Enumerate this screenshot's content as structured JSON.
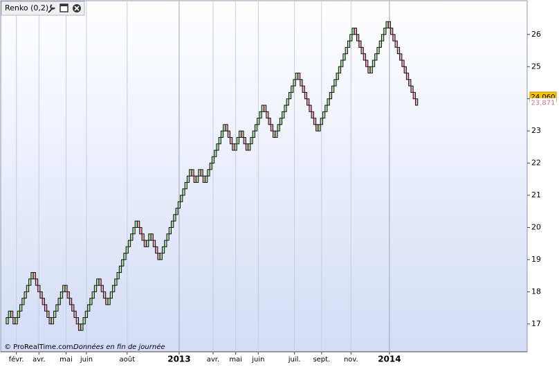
{
  "chart_data": {
    "type": "renko",
    "title": "Renko (0,2)",
    "footer": "© ProRealTime.com",
    "footer_note": "Données en fin de journée",
    "open": 17.0,
    "values": [
      17.2,
      17.4,
      17.2,
      17.0,
      17.2,
      17.4,
      17.6,
      17.8,
      18.0,
      18.2,
      18.4,
      18.6,
      18.4,
      18.2,
      18.0,
      17.8,
      17.6,
      17.4,
      17.2,
      17.0,
      17.2,
      17.4,
      17.6,
      17.8,
      18.0,
      18.2,
      18.0,
      17.8,
      17.6,
      17.4,
      17.2,
      17.0,
      16.8,
      17.0,
      17.2,
      17.4,
      17.6,
      17.8,
      18.0,
      18.2,
      18.4,
      18.2,
      18.0,
      17.8,
      17.6,
      17.8,
      18.0,
      18.2,
      18.4,
      18.6,
      18.8,
      19.0,
      19.2,
      19.4,
      19.6,
      19.8,
      20.0,
      20.2,
      20.0,
      19.8,
      19.6,
      19.4,
      19.6,
      19.8,
      19.6,
      19.4,
      19.2,
      19.0,
      19.2,
      19.4,
      19.6,
      19.8,
      20.0,
      20.2,
      20.4,
      20.6,
      20.8,
      21.0,
      21.2,
      21.4,
      21.6,
      21.8,
      21.6,
      21.4,
      21.6,
      21.8,
      21.6,
      21.4,
      21.6,
      21.8,
      22.0,
      22.2,
      22.4,
      22.6,
      22.8,
      23.0,
      23.2,
      23.0,
      22.8,
      22.6,
      22.4,
      22.6,
      22.8,
      23.0,
      22.8,
      22.6,
      22.4,
      22.6,
      22.8,
      23.0,
      23.2,
      23.4,
      23.6,
      23.8,
      23.6,
      23.4,
      23.2,
      23.0,
      22.8,
      23.0,
      23.2,
      23.4,
      23.6,
      23.8,
      24.0,
      24.2,
      24.4,
      24.6,
      24.8,
      24.6,
      24.4,
      24.2,
      24.0,
      23.8,
      23.6,
      23.4,
      23.2,
      23.0,
      23.2,
      23.4,
      23.6,
      23.8,
      24.0,
      24.2,
      24.4,
      24.6,
      24.8,
      25.0,
      25.2,
      25.4,
      25.6,
      25.8,
      26.0,
      26.2,
      26.0,
      25.8,
      25.6,
      25.4,
      25.2,
      25.0,
      24.8,
      25.0,
      25.2,
      25.4,
      25.6,
      25.8,
      26.0,
      26.2,
      26.4,
      26.2,
      26.0,
      25.8,
      25.6,
      25.4,
      25.2,
      25.0,
      24.8,
      24.6,
      24.4,
      24.2,
      24.0,
      23.8
    ],
    "up_color": "#a8e0a0",
    "down_color": "#e8a4b0",
    "xlim": [
      -2,
      229
    ],
    "xticks": [
      {
        "value": 4,
        "label": "févr."
      },
      {
        "value": 14,
        "label": "avr."
      },
      {
        "value": 26,
        "label": "mai"
      },
      {
        "value": 35,
        "label": "juin"
      },
      {
        "value": 53,
        "label": "août"
      },
      {
        "value": 76,
        "label": "2013"
      },
      {
        "value": 91,
        "label": "avr."
      },
      {
        "value": 101,
        "label": "mai"
      },
      {
        "value": 111,
        "label": "juin"
      },
      {
        "value": 127,
        "label": "juil."
      },
      {
        "value": 139,
        "label": "sept."
      },
      {
        "value": 152,
        "label": "nov."
      },
      {
        "value": 169,
        "label": "2014"
      }
    ],
    "ylim": [
      16.2,
      26.9
    ],
    "yticks": [
      17,
      18,
      19,
      20,
      21,
      22,
      23,
      24,
      25,
      26
    ],
    "price_labels": [
      {
        "value": 24.06,
        "label": "24,060",
        "color": "#f5c400"
      },
      {
        "value": 23.871,
        "label": "23,871",
        "color": "#ffffff"
      }
    ]
  }
}
